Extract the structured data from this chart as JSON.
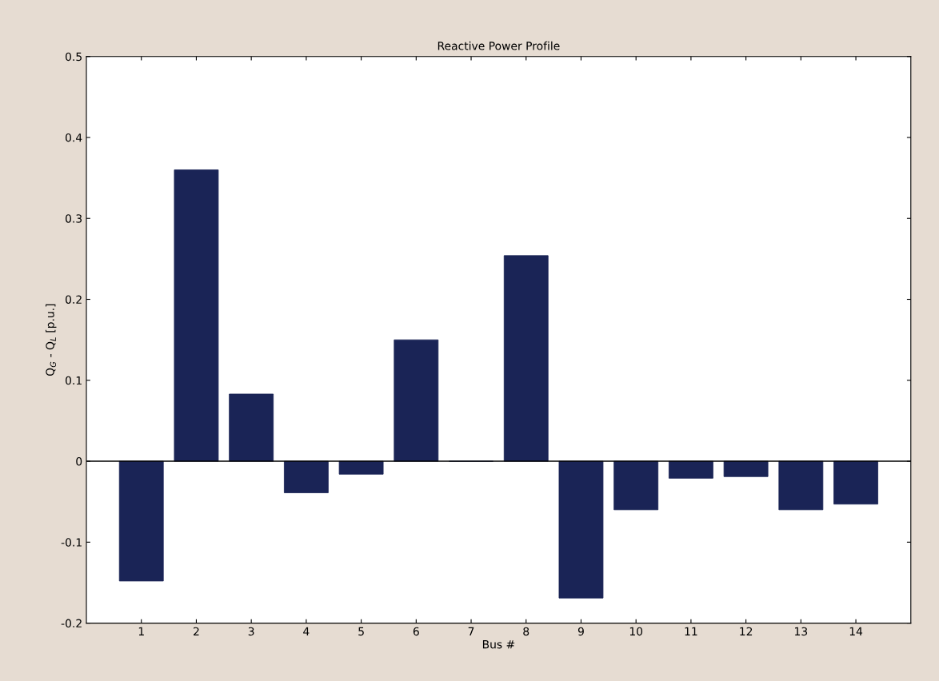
{
  "chart_data": {
    "type": "bar",
    "title": "Reactive Power Profile",
    "xlabel": "Bus #",
    "ylabel": "Q$_{G}$ - Q$_{L}$ [p.u.]",
    "categories": [
      "1",
      "2",
      "3",
      "4",
      "5",
      "6",
      "7",
      "8",
      "9",
      "10",
      "11",
      "12",
      "13",
      "14"
    ],
    "values": [
      -0.148,
      0.36,
      0.083,
      -0.039,
      -0.016,
      0.15,
      0,
      0.254,
      -0.169,
      -0.06,
      -0.021,
      -0.019,
      -0.06,
      -0.053
    ],
    "color": "#1a2456",
    "ylim": [
      -0.2,
      0.5
    ],
    "yticks": [
      -0.2,
      -0.1,
      0,
      0.1,
      0.2,
      0.3,
      0.4,
      0.5
    ],
    "grid": false,
    "ref_lines": [
      {
        "axis": "y",
        "value": 0,
        "color": "#000000"
      }
    ]
  }
}
